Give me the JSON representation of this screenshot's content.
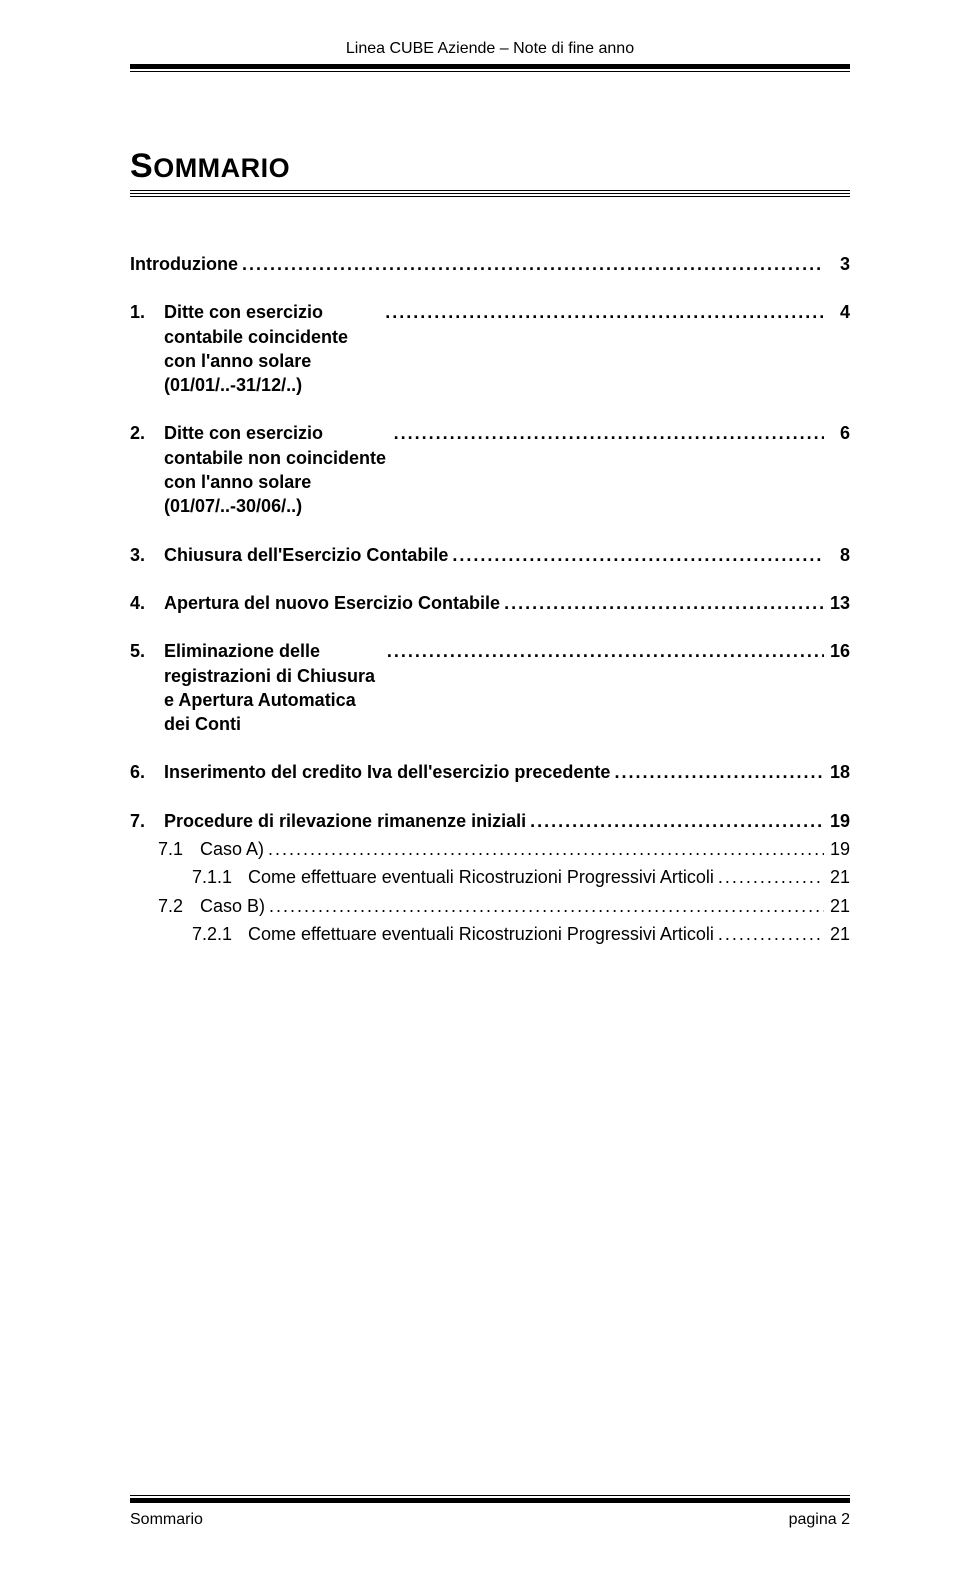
{
  "header": "Linea CUBE Aziende – Note di fine anno",
  "title_main": "S",
  "title_rest": "OMMARIO",
  "leader": "........................................................................................................................................................................................",
  "toc": [
    {
      "level": 1,
      "num": "",
      "label": "Introduzione",
      "page": "3",
      "first": true
    },
    {
      "level": 1,
      "num": "1.",
      "label": "Ditte con esercizio contabile coincidente con l'anno solare (01/01/..-31/12/..)",
      "page": "4",
      "wrap": true
    },
    {
      "level": 1,
      "num": "2.",
      "label": "Ditte con esercizio contabile non coincidente con l'anno solare (01/07/..-30/06/..)",
      "page": "6",
      "wrap": true
    },
    {
      "level": 1,
      "num": "3.",
      "label": "Chiusura dell'Esercizio Contabile",
      "page": "8"
    },
    {
      "level": 1,
      "num": "4.",
      "label": "Apertura del nuovo Esercizio Contabile",
      "page": "13"
    },
    {
      "level": 1,
      "num": "5.",
      "label": "Eliminazione delle registrazioni di Chiusura e Apertura Automatica dei Conti",
      "page": "16",
      "wrap": true
    },
    {
      "level": 1,
      "num": "6.",
      "label": "Inserimento del credito Iva dell'esercizio precedente",
      "page": "18"
    },
    {
      "level": 1,
      "num": "7.",
      "label": "Procedure di rilevazione rimanenze iniziali",
      "page": "19"
    },
    {
      "level": 2,
      "num": "7.1",
      "label": "Caso A)",
      "page": "19"
    },
    {
      "level": 3,
      "num": "7.1.1",
      "label": "Come effettuare eventuali Ricostruzioni Progressivi Articoli",
      "page": "21"
    },
    {
      "level": 2,
      "num": "7.2",
      "label": "Caso B)",
      "page": "21"
    },
    {
      "level": 3,
      "num": "7.2.1",
      "label": "Come effettuare eventuali Ricostruzioni Progressivi Articoli",
      "page": "21"
    }
  ],
  "footer_left": "Sommario",
  "footer_right": "pagina   2"
}
